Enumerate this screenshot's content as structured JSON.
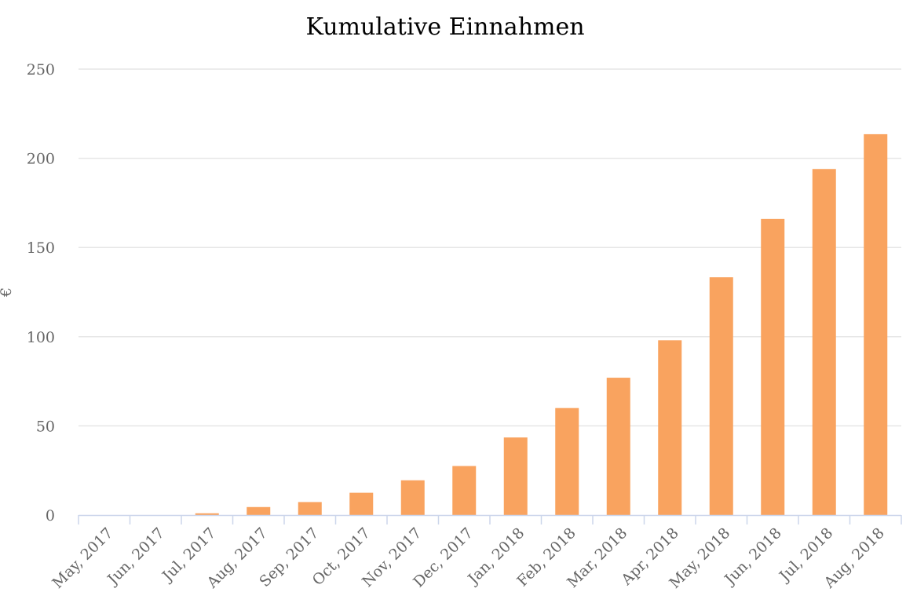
{
  "chart_data": {
    "type": "bar",
    "title": "Kumulative Einnahmen",
    "ylabel": "€",
    "xlabel": "",
    "categories": [
      "May, 2017",
      "Jun, 2017",
      "Jul, 2017",
      "Aug, 2017",
      "Sep, 2017",
      "Oct, 2017",
      "Nov, 2017",
      "Dec, 2017",
      "Jan, 2018",
      "Feb, 2018",
      "Mar, 2018",
      "Apr, 2018",
      "May, 2018",
      "Jun, 2018",
      "Jul, 2018",
      "Aug, 2018"
    ],
    "values": [
      0,
      0,
      1,
      4.5,
      7.3,
      12.5,
      19.5,
      27.5,
      43.5,
      60,
      77,
      98,
      133.3,
      166,
      194,
      213.5
    ],
    "ylim": [
      0,
      250
    ],
    "yticks": [
      0,
      50,
      100,
      150,
      200,
      250
    ],
    "grid": true,
    "legend": "none",
    "bar_color": "#f9a35f",
    "grid_color": "#e6e6e6",
    "axis_color": "#ccd6eb"
  }
}
